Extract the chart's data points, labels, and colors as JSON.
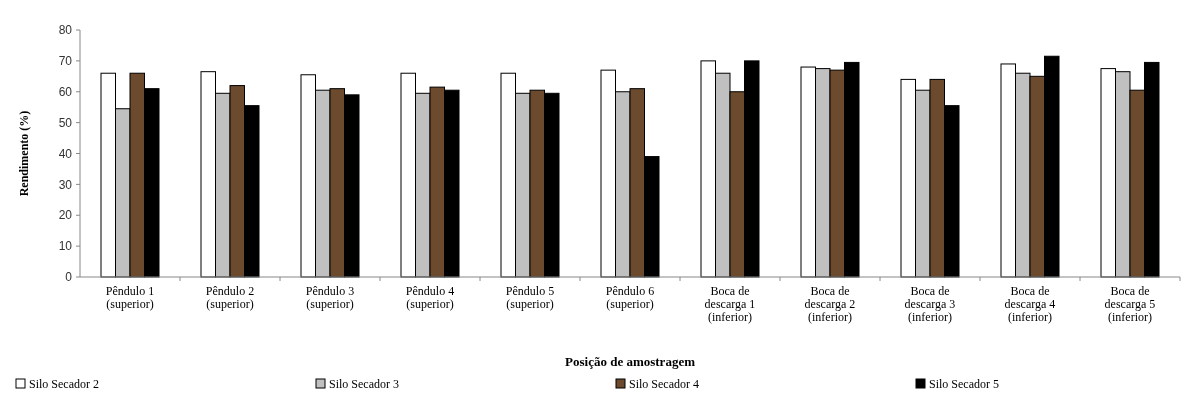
{
  "chart_data": {
    "type": "bar",
    "xlabel": "Posição de amostragem",
    "ylabel": "Rendimento (%)",
    "categories": [
      "Pêndulo 1\n(superior)",
      "Pêndulo 2\n(superior)",
      "Pêndulo 3\n(superior)",
      "Pêndulo 4\n(superior)",
      "Pêndulo 5\n(superior)",
      "Pêndulo 6\n(superior)",
      "Boca de\ndescarga 1\n(inferior)",
      "Boca de\ndescarga 2\n(inferior)",
      "Boca de\ndescarga 3\n(inferior)",
      "Boca de\ndescarga 4\n(inferior)",
      "Boca de\ndescarga 5\n(inferior)"
    ],
    "series": [
      {
        "name": "Silo Secador 2",
        "color": "#ffffff",
        "values": [
          66,
          66.5,
          65.5,
          66,
          66,
          67,
          70,
          68,
          64,
          69,
          67.5
        ]
      },
      {
        "name": "Silo Secador 3",
        "color": "#c0c0c0",
        "values": [
          54.5,
          59.5,
          60.5,
          59.5,
          59.5,
          60,
          66,
          67.5,
          60.5,
          66,
          66.5
        ]
      },
      {
        "name": "Silo Secador 4",
        "color": "#6b4a2e",
        "values": [
          66,
          62,
          61,
          61.5,
          60.5,
          61,
          60,
          67,
          64,
          65,
          60.5
        ]
      },
      {
        "name": "Silo Secador 5",
        "color": "#000000",
        "values": [
          61,
          55.5,
          59,
          60.5,
          59.5,
          39,
          70,
          69.5,
          55.5,
          71.5,
          69.5
        ]
      }
    ],
    "ylim": [
      0,
      80
    ],
    "yticks": [
      0,
      10,
      20,
      30,
      40,
      50,
      60,
      70,
      80
    ],
    "grid": false,
    "legend": "bottom"
  }
}
